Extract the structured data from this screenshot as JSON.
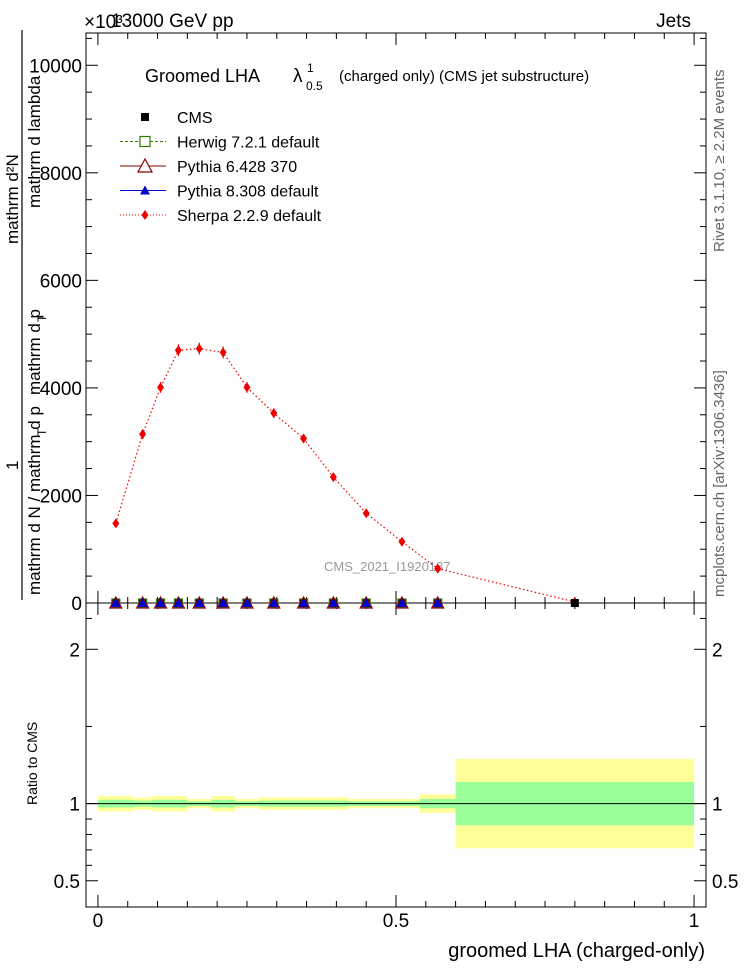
{
  "header": {
    "energy": "13000 GeV pp",
    "category": "Jets",
    "exponent": "×10³"
  },
  "side": {
    "rivet": "Rivet 3.1.10, ≥ 2.2M events",
    "mcplots": "mcplots.cern.ch [arXiv:1306.3436]"
  },
  "title": {
    "main": "Groomed LHA",
    "lambda": "λ",
    "sup": "1",
    "sub": "0.5",
    "rest": "(charged only) (CMS jet substructure)"
  },
  "watermark": "CMS_2021_I1920187",
  "legend": [
    {
      "label": "CMS",
      "color": "#000000",
      "marker": "square-filled",
      "line": "none"
    },
    {
      "label": "Herwig 7.2.1 default",
      "color": "#2e7d00",
      "marker": "square-open",
      "line": "dashed"
    },
    {
      "label": "Pythia 6.428 370",
      "color": "#8b0000",
      "marker": "triangle-open",
      "line": "solid"
    },
    {
      "label": "Pythia 8.308 default",
      "color": "#0000cc",
      "marker": "triangle-filled",
      "line": "solid"
    },
    {
      "label": "Sherpa 2.2.9 default",
      "color": "#ee0000",
      "marker": "diamond-filled",
      "line": "dotted"
    }
  ],
  "axes": {
    "ylabel_parts": [
      "mathrm d N / mathrm d p",
      "T",
      "mathrm d p",
      "T",
      "mathrm d lambda",
      "1",
      "mathrm d²N"
    ],
    "ratio_label": "Ratio to CMS",
    "xlabel": "groomed LHA (charged-only)"
  },
  "chart_data": [
    {
      "type": "line",
      "panel": "main",
      "xlim": [
        -0.02,
        1.02
      ],
      "ylim": [
        0,
        10600
      ],
      "y_ticks": [
        0,
        2000,
        4000,
        6000,
        8000,
        10000
      ],
      "y_tick_labels": [
        "0",
        "2000",
        "4000",
        "6000",
        "8000",
        "10000"
      ],
      "y_scale_exponent": 3,
      "x": [
        0.03,
        0.075,
        0.105,
        0.135,
        0.17,
        0.21,
        0.25,
        0.295,
        0.345,
        0.395,
        0.45,
        0.51,
        0.57,
        0.8
      ],
      "series": [
        {
          "name": "Sherpa 2.2.9 default",
          "color": "#ee0000",
          "values": [
            1480,
            3140,
            4010,
            4700,
            4730,
            4660,
            4010,
            3530,
            3060,
            2340,
            1670,
            1140,
            640,
            20
          ],
          "errors": [
            70,
            90,
            100,
            110,
            110,
            110,
            100,
            90,
            80,
            70,
            60,
            50,
            40,
            10
          ]
        },
        {
          "name": "CMS",
          "color": "#000000",
          "values": [
            0,
            0,
            0,
            0,
            0,
            0,
            0,
            0,
            0,
            0,
            0,
            0,
            0,
            0
          ]
        },
        {
          "name": "Herwig 7.2.1 default",
          "color": "#2e7d00",
          "values": [
            0,
            0,
            0,
            0,
            0,
            0,
            0,
            0,
            0,
            0,
            0,
            0,
            0,
            0
          ]
        },
        {
          "name": "Pythia 6.428 370",
          "color": "#8b0000",
          "values": [
            0,
            0,
            0,
            0,
            0,
            0,
            0,
            0,
            0,
            0,
            0,
            0,
            0,
            0
          ]
        },
        {
          "name": "Pythia 8.308 default",
          "color": "#0000cc",
          "values": [
            0,
            0,
            0,
            0,
            0,
            0,
            0,
            0,
            0,
            0,
            0,
            0,
            0,
            0
          ]
        }
      ]
    },
    {
      "type": "area",
      "panel": "ratio",
      "xlim": [
        -0.02,
        1.02
      ],
      "ylim": [
        0.33,
        2.3
      ],
      "y_ticks": [
        0.5,
        1,
        2
      ],
      "y_tick_labels": [
        "0.5",
        "1",
        "2"
      ],
      "x_ticks": [
        0,
        0.5,
        1
      ],
      "x_tick_labels": [
        "0",
        "0.5",
        "1"
      ],
      "bins": [
        {
          "lo": 0.0,
          "hi": 0.06,
          "stat": 0.025,
          "total": 0.05
        },
        {
          "lo": 0.06,
          "hi": 0.09,
          "stat": 0.02,
          "total": 0.04
        },
        {
          "lo": 0.09,
          "hi": 0.12,
          "stat": 0.025,
          "total": 0.05
        },
        {
          "lo": 0.12,
          "hi": 0.15,
          "stat": 0.025,
          "total": 0.05
        },
        {
          "lo": 0.15,
          "hi": 0.19,
          "stat": 0.015,
          "total": 0.03
        },
        {
          "lo": 0.19,
          "hi": 0.23,
          "stat": 0.025,
          "total": 0.05
        },
        {
          "lo": 0.23,
          "hi": 0.27,
          "stat": 0.015,
          "total": 0.03
        },
        {
          "lo": 0.27,
          "hi": 0.32,
          "stat": 0.02,
          "total": 0.04
        },
        {
          "lo": 0.32,
          "hi": 0.37,
          "stat": 0.02,
          "total": 0.04
        },
        {
          "lo": 0.37,
          "hi": 0.42,
          "stat": 0.02,
          "total": 0.04
        },
        {
          "lo": 0.42,
          "hi": 0.48,
          "stat": 0.015,
          "total": 0.03
        },
        {
          "lo": 0.48,
          "hi": 0.54,
          "stat": 0.015,
          "total": 0.03
        },
        {
          "lo": 0.54,
          "hi": 0.6,
          "stat": 0.03,
          "total": 0.06
        },
        {
          "lo": 0.6,
          "hi": 1.0,
          "stat": 0.14,
          "total": 0.29
        }
      ],
      "stat_color": "#99ff99",
      "total_color": "#ffff99"
    }
  ]
}
